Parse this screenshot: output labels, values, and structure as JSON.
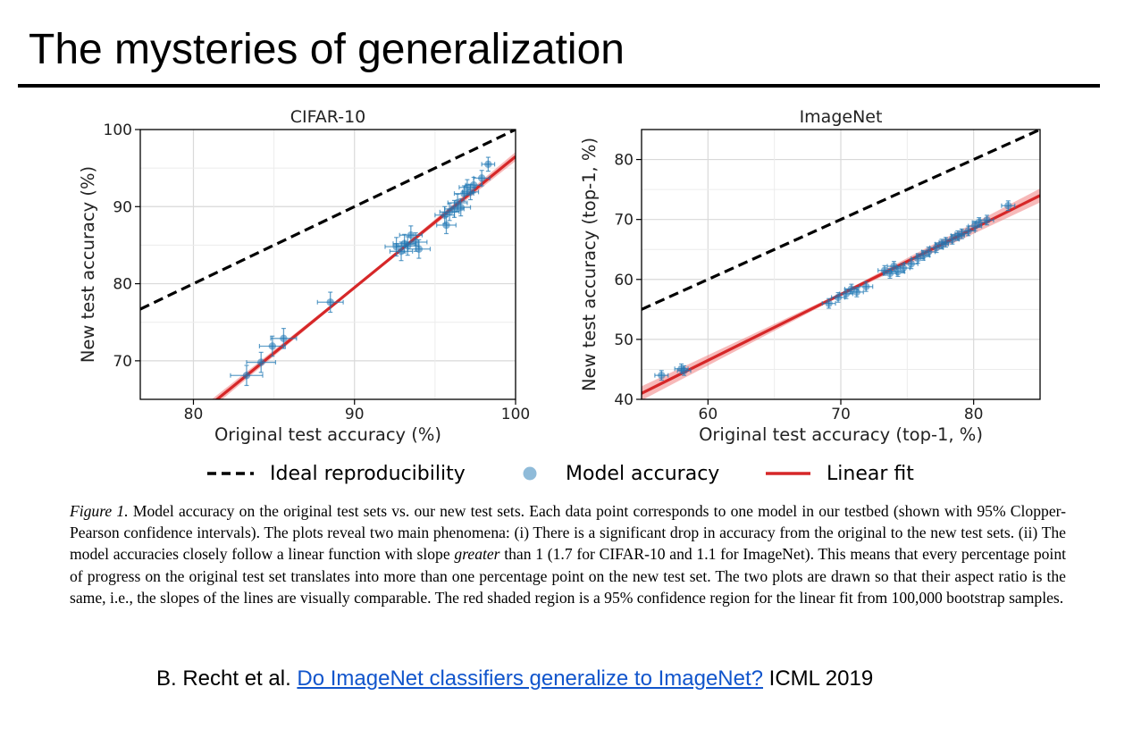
{
  "slide": {
    "title": "The mysteries of generalization"
  },
  "legend": {
    "ideal": "Ideal reproducibility",
    "model": "Model accuracy",
    "fit": "Linear fit"
  },
  "caption": {
    "label": "Figure 1.",
    "part1": " Model accuracy on the original test sets vs. our new test sets. Each data point corresponds to one model in our testbed (shown with 95% Clopper-Pearson confidence intervals). The plots reveal two main phenomena: (i) There is a significant drop in accuracy from the original to the new test sets. (ii) The model accuracies closely follow a linear function with slope ",
    "emph": "greater",
    "part2": " than 1 (1.7 for CIFAR-10 and 1.1 for ImageNet). This means that every percentage point of progress on the original test set translates into more than one percentage point on the new test set. The two plots are drawn so that their aspect ratio is the same, i.e., the slopes of the lines are visually comparable. The red shaded region is a 95% confidence region for the linear fit from 100,000 bootstrap samples."
  },
  "citation": {
    "prefix": "B. Recht et al. ",
    "link_text": "Do ImageNet classifiers generalize to ImageNet?",
    "suffix": " ICML 2019"
  },
  "colors": {
    "ideal": "#000000",
    "fit": "#d62728",
    "fit_band": "#f08080",
    "points": "#1f77b4",
    "grid": "#d9d9d9"
  },
  "chart_data": [
    {
      "type": "scatter",
      "title": "CIFAR-10",
      "xlabel": "Original test accuracy (%)",
      "ylabel": "New test accuracy (%)",
      "xlim": [
        76.7,
        100
      ],
      "ylim": [
        65,
        100
      ],
      "xticks": [
        80,
        90,
        100
      ],
      "yticks": [
        70,
        80,
        90,
        100
      ],
      "grid": true,
      "ideal_line": {
        "slope": 1,
        "intercept": 0
      },
      "fit_line": {
        "slope": 1.7,
        "intercept": -73.5,
        "x_range": [
          81,
          100
        ]
      },
      "points": [
        {
          "x": 83.3,
          "y": 68.1,
          "ex": 1.0,
          "ey": 1.3
        },
        {
          "x": 84.2,
          "y": 69.8,
          "ex": 0.9,
          "ey": 1.3
        },
        {
          "x": 84.9,
          "y": 71.9,
          "ex": 0.8,
          "ey": 1.3
        },
        {
          "x": 85.6,
          "y": 72.9,
          "ex": 0.8,
          "ey": 1.3
        },
        {
          "x": 88.5,
          "y": 77.6,
          "ex": 0.8,
          "ey": 1.3
        },
        {
          "x": 92.6,
          "y": 84.8,
          "ex": 0.7,
          "ey": 1.2
        },
        {
          "x": 92.9,
          "y": 84.2,
          "ex": 0.7,
          "ey": 1.2
        },
        {
          "x": 93.1,
          "y": 85.2,
          "ex": 0.7,
          "ey": 1.2
        },
        {
          "x": 93.3,
          "y": 84.9,
          "ex": 0.7,
          "ey": 1.2
        },
        {
          "x": 93.5,
          "y": 86.3,
          "ex": 0.7,
          "ey": 1.2
        },
        {
          "x": 93.8,
          "y": 85.4,
          "ex": 0.7,
          "ey": 1.2
        },
        {
          "x": 94.0,
          "y": 84.5,
          "ex": 0.7,
          "ey": 1.2
        },
        {
          "x": 95.6,
          "y": 88.9,
          "ex": 0.6,
          "ey": 1.1
        },
        {
          "x": 95.7,
          "y": 87.6,
          "ex": 0.6,
          "ey": 1.1
        },
        {
          "x": 95.9,
          "y": 89.3,
          "ex": 0.6,
          "ey": 1.1
        },
        {
          "x": 96.2,
          "y": 89.7,
          "ex": 0.6,
          "ey": 1.1
        },
        {
          "x": 96.4,
          "y": 90.5,
          "ex": 0.6,
          "ey": 1.1
        },
        {
          "x": 96.6,
          "y": 89.9,
          "ex": 0.6,
          "ey": 1.1
        },
        {
          "x": 96.8,
          "y": 91.7,
          "ex": 0.6,
          "ey": 1.0
        },
        {
          "x": 97.0,
          "y": 92.5,
          "ex": 0.5,
          "ey": 1.0
        },
        {
          "x": 97.2,
          "y": 91.9,
          "ex": 0.5,
          "ey": 1.0
        },
        {
          "x": 97.4,
          "y": 92.8,
          "ex": 0.5,
          "ey": 1.0
        },
        {
          "x": 97.9,
          "y": 93.7,
          "ex": 0.5,
          "ey": 1.0
        },
        {
          "x": 98.3,
          "y": 95.5,
          "ex": 0.4,
          "ey": 0.9
        }
      ]
    },
    {
      "type": "scatter",
      "title": "ImageNet",
      "xlabel": "Original test accuracy (top-1, %)",
      "ylabel": "New test accuracy (top-1, %)",
      "xlim": [
        55,
        85
      ],
      "ylim": [
        40,
        85
      ],
      "xticks": [
        60,
        70,
        80
      ],
      "yticks": [
        40,
        50,
        60,
        70,
        80
      ],
      "grid": true,
      "ideal_line": {
        "slope": 1,
        "intercept": 0
      },
      "fit_line": {
        "slope": 1.1,
        "intercept": -19.5,
        "x_range": [
          55,
          85
        ]
      },
      "points": [
        {
          "x": 56.5,
          "y": 44.0,
          "ex": 0.5,
          "ey": 0.8
        },
        {
          "x": 58.0,
          "y": 45.1,
          "ex": 0.5,
          "ey": 0.8
        },
        {
          "x": 58.2,
          "y": 44.8,
          "ex": 0.5,
          "ey": 0.8
        },
        {
          "x": 69.1,
          "y": 56.0,
          "ex": 0.5,
          "ey": 0.8
        },
        {
          "x": 69.8,
          "y": 57.0,
          "ex": 0.5,
          "ey": 0.8
        },
        {
          "x": 70.4,
          "y": 57.6,
          "ex": 0.5,
          "ey": 0.8
        },
        {
          "x": 70.8,
          "y": 58.4,
          "ex": 0.5,
          "ey": 0.8
        },
        {
          "x": 71.2,
          "y": 57.9,
          "ex": 0.5,
          "ey": 0.8
        },
        {
          "x": 71.9,
          "y": 58.8,
          "ex": 0.5,
          "ey": 0.8
        },
        {
          "x": 73.3,
          "y": 61.5,
          "ex": 0.5,
          "ey": 0.8
        },
        {
          "x": 73.7,
          "y": 61.0,
          "ex": 0.5,
          "ey": 0.8
        },
        {
          "x": 74.0,
          "y": 62.2,
          "ex": 0.5,
          "ey": 0.8
        },
        {
          "x": 74.3,
          "y": 61.3,
          "ex": 0.5,
          "ey": 0.8
        },
        {
          "x": 74.7,
          "y": 61.9,
          "ex": 0.5,
          "ey": 0.8
        },
        {
          "x": 75.3,
          "y": 62.6,
          "ex": 0.5,
          "ey": 0.8
        },
        {
          "x": 75.8,
          "y": 63.5,
          "ex": 0.5,
          "ey": 0.8
        },
        {
          "x": 76.2,
          "y": 64.0,
          "ex": 0.5,
          "ey": 0.8
        },
        {
          "x": 76.6,
          "y": 64.6,
          "ex": 0.5,
          "ey": 0.8
        },
        {
          "x": 77.2,
          "y": 65.3,
          "ex": 0.5,
          "ey": 0.8
        },
        {
          "x": 77.6,
          "y": 65.9,
          "ex": 0.5,
          "ey": 0.8
        },
        {
          "x": 77.9,
          "y": 66.2,
          "ex": 0.5,
          "ey": 0.8
        },
        {
          "x": 78.4,
          "y": 66.7,
          "ex": 0.5,
          "ey": 0.8
        },
        {
          "x": 78.8,
          "y": 67.3,
          "ex": 0.5,
          "ey": 0.8
        },
        {
          "x": 79.1,
          "y": 67.6,
          "ex": 0.5,
          "ey": 0.8
        },
        {
          "x": 79.6,
          "y": 68.1,
          "ex": 0.5,
          "ey": 0.8
        },
        {
          "x": 80.1,
          "y": 68.9,
          "ex": 0.5,
          "ey": 0.8
        },
        {
          "x": 80.4,
          "y": 69.5,
          "ex": 0.5,
          "ey": 0.8
        },
        {
          "x": 81.0,
          "y": 69.9,
          "ex": 0.5,
          "ey": 0.8
        },
        {
          "x": 82.6,
          "y": 72.3,
          "ex": 0.5,
          "ey": 0.8
        }
      ]
    }
  ]
}
